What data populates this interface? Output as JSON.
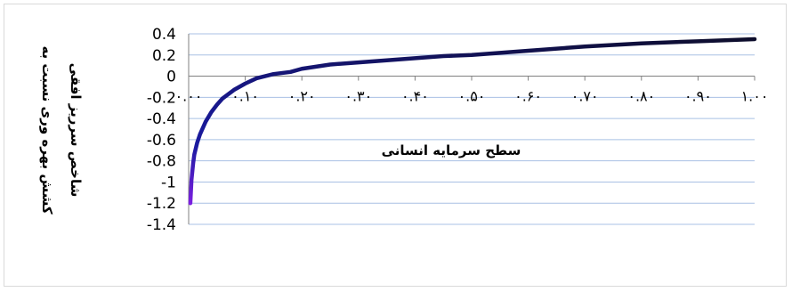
{
  "chart_data": {
    "type": "line",
    "title": "",
    "xlabel": "سطح سرمایه انسانی",
    "ylabel_line1": "کشش بهره وری نسبت به",
    "ylabel_line2": "شاخص سرریز افقی",
    "xlim": [
      0,
      1
    ],
    "ylim": [
      -1.4,
      0.4
    ],
    "y_ticks": [
      0.4,
      0.2,
      0,
      -0.2,
      -0.4,
      -0.6,
      -0.8,
      -1,
      -1.2,
      -1.4
    ],
    "y_tick_labels": [
      "0.4",
      "0.2",
      "0",
      "-0.2",
      "-0.4",
      "-0.6",
      "-0.8",
      "-1",
      "-1.2",
      "-1.4"
    ],
    "x_ticks": [
      0,
      0.1,
      0.2,
      0.3,
      0.4,
      0.5,
      0.6,
      0.7,
      0.8,
      0.9,
      1.0
    ],
    "x_tick_labels": [
      "۰.۰۰",
      "۰.۱۰",
      "۰.۲۰",
      "۰.۳۰",
      "۰.۴۰",
      "۰.۵۰",
      "۰.۶۰",
      "۰.۷۰",
      "۰.۸۰",
      "۰.۹۰",
      "۱.۰۰"
    ],
    "grid": true,
    "legend": "none",
    "series": [
      {
        "x": [
          0.003,
          0.005,
          0.008,
          0.01,
          0.015,
          0.02,
          0.03,
          0.04,
          0.05,
          0.06,
          0.08,
          0.1,
          0.12,
          0.15,
          0.18,
          0.2,
          0.25,
          0.3,
          0.35,
          0.4,
          0.45,
          0.5,
          0.6,
          0.7,
          0.8,
          0.9,
          1.0
        ],
        "y": [
          -1.2,
          -0.98,
          -0.82,
          -0.74,
          -0.63,
          -0.55,
          -0.43,
          -0.34,
          -0.27,
          -0.21,
          -0.13,
          -0.07,
          -0.02,
          0.02,
          0.04,
          0.07,
          0.11,
          0.13,
          0.15,
          0.17,
          0.19,
          0.2,
          0.24,
          0.28,
          0.31,
          0.33,
          0.35
        ]
      }
    ],
    "colors": {
      "grid": "#a9c0e4",
      "axis": "#808080",
      "line_dark": "#0d0d2b",
      "line_mid": "#1a1aa0",
      "line_light": "#7b1fe0"
    }
  }
}
